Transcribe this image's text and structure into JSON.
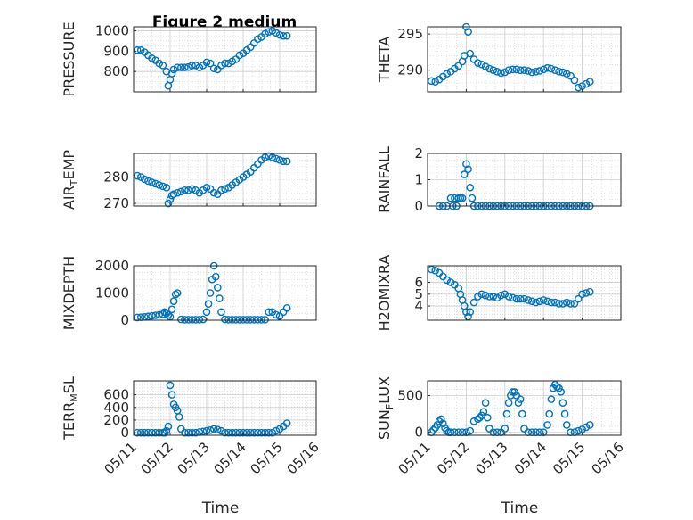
{
  "figure": {
    "title": "Figure 2 medium",
    "xlabel": "Time",
    "x_ticks": [
      "05/11",
      "05/12",
      "05/13",
      "05/14",
      "05/15",
      "05/16"
    ],
    "marker_color": "#0072BD"
  },
  "chart_data": [
    {
      "type": "scatter",
      "ylabel": "PRESSURE",
      "xlim": [
        "05/11",
        "05/16"
      ],
      "ylim": [
        700,
        1020
      ],
      "yticks": [
        800,
        900,
        1000
      ],
      "grid": true,
      "x": [
        11.1,
        11.2,
        11.3,
        11.4,
        11.5,
        11.6,
        11.7,
        11.8,
        11.9,
        11.95,
        12.0,
        12.05,
        12.1,
        12.2,
        12.3,
        12.4,
        12.5,
        12.6,
        12.7,
        12.8,
        12.9,
        13.0,
        13.1,
        13.2,
        13.3,
        13.4,
        13.5,
        13.6,
        13.7,
        13.8,
        13.9,
        14.0,
        14.1,
        14.2,
        14.3,
        14.4,
        14.5,
        14.6,
        14.7,
        14.8,
        14.9,
        15.0,
        15.1,
        15.2
      ],
      "y": [
        905,
        905,
        895,
        880,
        865,
        855,
        840,
        830,
        800,
        730,
        760,
        790,
        810,
        820,
        820,
        820,
        822,
        830,
        830,
        820,
        830,
        845,
        840,
        815,
        810,
        830,
        840,
        840,
        850,
        860,
        880,
        890,
        905,
        920,
        940,
        960,
        970,
        985,
        995,
        1000,
        990,
        980,
        975,
        975
      ]
    },
    {
      "type": "scatter",
      "ylabel": "THETA",
      "xlim": [
        "05/11",
        "05/16"
      ],
      "ylim": [
        287,
        296
      ],
      "yticks": [
        290,
        295
      ],
      "grid": true,
      "x": [
        11.1,
        11.2,
        11.3,
        11.4,
        11.5,
        11.6,
        11.7,
        11.8,
        11.9,
        11.95,
        12.0,
        12.05,
        12.1,
        12.2,
        12.3,
        12.4,
        12.5,
        12.6,
        12.7,
        12.8,
        12.9,
        13.0,
        13.1,
        13.2,
        13.3,
        13.4,
        13.5,
        13.6,
        13.7,
        13.8,
        13.9,
        14.0,
        14.1,
        14.2,
        14.3,
        14.4,
        14.5,
        14.6,
        14.7,
        14.8,
        14.9,
        15.0,
        15.1,
        15.2
      ],
      "y": [
        288.5,
        288.4,
        288.7,
        289.1,
        289.5,
        289.8,
        290.2,
        290.6,
        291.2,
        292.0,
        296.0,
        295.3,
        292.3,
        291.5,
        291.0,
        290.8,
        290.5,
        290.2,
        290.0,
        289.8,
        289.6,
        289.7,
        290.0,
        290.1,
        290.1,
        290.0,
        290.0,
        289.9,
        289.7,
        289.8,
        289.9,
        290.1,
        290.3,
        290.2,
        290.0,
        289.8,
        289.7,
        289.5,
        289.2,
        288.6,
        287.6,
        287.8,
        288.1,
        288.4
      ]
    },
    {
      "type": "scatter",
      "ylabel": "AIR_TEMP",
      "xlim": [
        "05/11",
        "05/16"
      ],
      "ylim": [
        269,
        289
      ],
      "yticks": [
        270,
        280
      ],
      "grid": true,
      "x": [
        11.1,
        11.2,
        11.3,
        11.4,
        11.5,
        11.6,
        11.7,
        11.8,
        11.9,
        11.95,
        12.0,
        12.05,
        12.1,
        12.2,
        12.3,
        12.4,
        12.5,
        12.6,
        12.7,
        12.8,
        12.9,
        13.0,
        13.1,
        13.2,
        13.3,
        13.4,
        13.5,
        13.6,
        13.7,
        13.8,
        13.9,
        14.0,
        14.1,
        14.2,
        14.3,
        14.4,
        14.5,
        14.6,
        14.7,
        14.8,
        14.9,
        15.0,
        15.1,
        15.2
      ],
      "y": [
        280.5,
        280,
        279.2,
        278.5,
        278,
        277.5,
        277,
        276.5,
        276,
        270,
        271.5,
        273,
        273.5,
        274,
        274.5,
        275,
        275,
        275.5,
        275,
        274,
        275,
        276,
        275.5,
        274,
        273.5,
        275,
        275.5,
        276,
        277,
        278,
        279,
        280,
        281,
        282,
        283.5,
        285,
        286.5,
        287.5,
        288,
        287.5,
        287,
        286.5,
        286,
        286
      ]
    },
    {
      "type": "scatter",
      "ylabel": "RAINFALL",
      "xlim": [
        "05/11",
        "05/16"
      ],
      "ylim": [
        0,
        2
      ],
      "yticks": [
        0,
        1,
        2
      ],
      "grid": true,
      "x": [
        11.3,
        11.4,
        11.5,
        11.6,
        11.65,
        11.7,
        11.75,
        11.8,
        11.85,
        11.9,
        11.95,
        12.0,
        12.05,
        12.1,
        12.15,
        12.2,
        12.3,
        12.4,
        12.5,
        12.6,
        12.7,
        12.8,
        12.9,
        13.0,
        13.1,
        13.2,
        13.3,
        13.4,
        13.5,
        13.6,
        13.7,
        13.8,
        13.9,
        14.0,
        14.1,
        14.2,
        14.3,
        14.4,
        14.5,
        14.6,
        14.7,
        14.8,
        14.9,
        15.0,
        15.1,
        15.2
      ],
      "y": [
        0,
        0,
        0,
        0.3,
        0,
        0.3,
        0,
        0.3,
        0.3,
        0.3,
        1.2,
        1.6,
        1.4,
        0.7,
        0.3,
        0,
        0,
        0,
        0,
        0,
        0,
        0,
        0,
        0,
        0,
        0,
        0,
        0,
        0,
        0,
        0,
        0,
        0,
        0,
        0,
        0,
        0,
        0,
        0,
        0,
        0,
        0,
        0,
        0,
        0,
        0
      ]
    },
    {
      "type": "scatter",
      "ylabel": "MIXDEPTH",
      "xlim": [
        "05/11",
        "05/16"
      ],
      "ylim": [
        0,
        2000
      ],
      "yticks": [
        0,
        1000,
        2000
      ],
      "grid": true,
      "x": [
        11.1,
        11.2,
        11.3,
        11.4,
        11.5,
        11.6,
        11.7,
        11.8,
        11.85,
        11.9,
        11.95,
        12.0,
        12.05,
        12.1,
        12.15,
        12.2,
        12.3,
        12.4,
        12.5,
        12.6,
        12.7,
        12.8,
        12.9,
        13.0,
        13.05,
        13.1,
        13.15,
        13.2,
        13.25,
        13.3,
        13.35,
        13.4,
        13.5,
        13.6,
        13.7,
        13.8,
        13.9,
        14.0,
        14.1,
        14.2,
        14.3,
        14.4,
        14.5,
        14.6,
        14.7,
        14.8,
        14.9,
        15.0,
        15.1,
        15.2
      ],
      "y": [
        100,
        110,
        120,
        140,
        160,
        180,
        200,
        220,
        300,
        250,
        200,
        120,
        400,
        700,
        950,
        1000,
        30,
        20,
        20,
        20,
        20,
        20,
        30,
        300,
        600,
        1000,
        1500,
        2000,
        1600,
        1200,
        800,
        300,
        30,
        20,
        20,
        20,
        20,
        20,
        20,
        20,
        20,
        20,
        20,
        20,
        300,
        300,
        200,
        150,
        300,
        450
      ]
    },
    {
      "type": "scatter",
      "ylabel": "H2OMIXRA",
      "xlim": [
        "05/11",
        "05/16"
      ],
      "ylim": [
        2.8,
        7.4
      ],
      "yticks": [
        4,
        5,
        6
      ],
      "grid": true,
      "x": [
        11.1,
        11.2,
        11.3,
        11.4,
        11.5,
        11.6,
        11.7,
        11.8,
        11.85,
        11.9,
        11.95,
        12.0,
        12.05,
        12.1,
        12.2,
        12.3,
        12.4,
        12.5,
        12.6,
        12.7,
        12.8,
        12.9,
        13.0,
        13.1,
        13.2,
        13.3,
        13.4,
        13.5,
        13.6,
        13.7,
        13.8,
        13.9,
        14.0,
        14.1,
        14.2,
        14.3,
        14.4,
        14.5,
        14.6,
        14.7,
        14.8,
        14.9,
        15.0,
        15.1,
        15.2
      ],
      "y": [
        7.1,
        7.0,
        6.8,
        6.5,
        6.2,
        6.0,
        5.8,
        5.5,
        5.0,
        4.5,
        4.0,
        3.5,
        3.1,
        3.5,
        4.3,
        4.8,
        5.0,
        4.9,
        4.8,
        4.8,
        4.7,
        4.9,
        5.0,
        4.8,
        4.7,
        4.6,
        4.6,
        4.6,
        4.5,
        4.4,
        4.3,
        4.4,
        4.5,
        4.4,
        4.3,
        4.3,
        4.2,
        4.2,
        4.3,
        4.2,
        4.2,
        4.6,
        5.0,
        5.1,
        5.2
      ]
    },
    {
      "type": "scatter",
      "ylabel": "TERR_MSL",
      "xlim": [
        "05/11",
        "05/16"
      ],
      "ylim": [
        -40,
        820
      ],
      "yticks": [
        0,
        200,
        400,
        600
      ],
      "grid": true,
      "x": [
        11.1,
        11.2,
        11.3,
        11.4,
        11.5,
        11.6,
        11.7,
        11.8,
        11.85,
        11.9,
        11.95,
        12.0,
        12.05,
        12.1,
        12.15,
        12.2,
        12.25,
        12.3,
        12.4,
        12.5,
        12.6,
        12.7,
        12.8,
        12.9,
        13.0,
        13.1,
        13.2,
        13.3,
        13.4,
        13.5,
        13.6,
        13.7,
        13.8,
        13.9,
        14.0,
        14.1,
        14.2,
        14.3,
        14.4,
        14.5,
        14.6,
        14.7,
        14.8,
        14.9,
        15.0,
        15.1,
        15.2
      ],
      "y": [
        0,
        0,
        0,
        0,
        0,
        0,
        0,
        0,
        0,
        30,
        100,
        750,
        600,
        450,
        400,
        350,
        250,
        60,
        0,
        0,
        0,
        0,
        10,
        20,
        30,
        40,
        60,
        50,
        30,
        0,
        0,
        0,
        0,
        0,
        0,
        0,
        0,
        0,
        0,
        0,
        0,
        0,
        0,
        30,
        60,
        100,
        150
      ]
    },
    {
      "type": "scatter",
      "ylabel": "SUN_FLUX",
      "xlim": [
        "05/11",
        "05/16"
      ],
      "ylim": [
        -40,
        700
      ],
      "yticks": [
        0,
        500
      ],
      "grid": true,
      "x": [
        11.1,
        11.15,
        11.2,
        11.25,
        11.3,
        11.35,
        11.4,
        11.45,
        11.5,
        11.55,
        11.6,
        11.7,
        11.8,
        11.9,
        12.0,
        12.1,
        12.2,
        12.3,
        12.35,
        12.4,
        12.45,
        12.5,
        12.55,
        12.6,
        12.7,
        12.8,
        12.9,
        13.0,
        13.05,
        13.1,
        13.15,
        13.2,
        13.25,
        13.3,
        13.35,
        13.4,
        13.45,
        13.5,
        13.6,
        13.7,
        13.8,
        13.9,
        14.0,
        14.1,
        14.15,
        14.2,
        14.25,
        14.3,
        14.35,
        14.4,
        14.45,
        14.5,
        14.55,
        14.6,
        14.7,
        14.8,
        14.9,
        15.0,
        15.1,
        15.2
      ],
      "y": [
        0,
        30,
        60,
        100,
        150,
        180,
        120,
        60,
        20,
        0,
        0,
        0,
        0,
        0,
        0,
        20,
        150,
        180,
        200,
        230,
        280,
        400,
        200,
        50,
        0,
        0,
        0,
        50,
        250,
        400,
        500,
        550,
        550,
        500,
        400,
        450,
        250,
        50,
        0,
        0,
        0,
        0,
        0,
        100,
        250,
        450,
        600,
        650,
        620,
        600,
        550,
        400,
        250,
        100,
        0,
        0,
        20,
        40,
        70,
        100
      ]
    }
  ]
}
